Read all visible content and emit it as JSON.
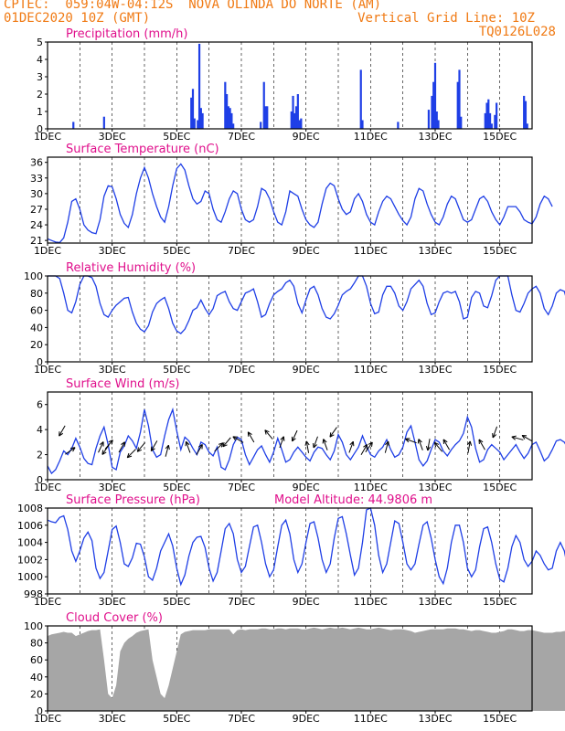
{
  "header": {
    "line1": "CPTEC:  059:04W-04:12S  NOVA OLINDA DO NORTE (AM)",
    "line2_left": "01DEC2020 10Z (GMT)",
    "line2_right": "Vertical Grid Line: 10Z",
    "line3_right": "TQ0126L028"
  },
  "colors": {
    "header": "#f07a14",
    "title": "#e0108c",
    "series": "#1f3fe6",
    "cloud": "#a6a6a6",
    "axis": "#000000"
  },
  "x_tick_labels": [
    "1DEC",
    "3DEC",
    "5DEC",
    "7DEC",
    "9DEC",
    "11DEC",
    "13DEC",
    "15DEC"
  ],
  "x_tick_days": [
    1,
    3,
    5,
    7,
    9,
    11,
    13,
    15
  ],
  "chart_data": [
    {
      "id": "precip",
      "type": "bar",
      "title": "Precipitation (mm/h)",
      "ylabel": "mm/h",
      "ylim": [
        0,
        5
      ],
      "yticks": [
        0,
        1,
        2,
        3,
        4,
        5
      ],
      "x_units": "day of December 2020",
      "points": [
        [
          1.8,
          0.4
        ],
        [
          2.75,
          0.7
        ],
        [
          5.45,
          1.8
        ],
        [
          5.5,
          2.3
        ],
        [
          5.55,
          0.6
        ],
        [
          5.65,
          0.5
        ],
        [
          5.7,
          4.9
        ],
        [
          5.75,
          1.2
        ],
        [
          5.8,
          0.9
        ],
        [
          6.5,
          2.7
        ],
        [
          6.55,
          2.0
        ],
        [
          6.6,
          1.3
        ],
        [
          6.65,
          1.2
        ],
        [
          6.7,
          0.9
        ],
        [
          6.75,
          0.3
        ],
        [
          7.6,
          0.4
        ],
        [
          7.7,
          2.7
        ],
        [
          7.75,
          1.3
        ],
        [
          7.8,
          1.3
        ],
        [
          8.55,
          1.0
        ],
        [
          8.6,
          1.9
        ],
        [
          8.65,
          0.9
        ],
        [
          8.7,
          1.3
        ],
        [
          8.75,
          2.0
        ],
        [
          8.8,
          0.5
        ],
        [
          8.85,
          0.6
        ],
        [
          10.7,
          3.4
        ],
        [
          10.75,
          0.5
        ],
        [
          11.85,
          0.4
        ],
        [
          12.8,
          1.1
        ],
        [
          12.9,
          1.9
        ],
        [
          12.95,
          2.7
        ],
        [
          13.0,
          3.8
        ],
        [
          13.05,
          1.0
        ],
        [
          13.1,
          0.5
        ],
        [
          13.7,
          2.7
        ],
        [
          13.75,
          3.4
        ],
        [
          13.8,
          0.7
        ],
        [
          14.55,
          0.9
        ],
        [
          14.6,
          1.5
        ],
        [
          14.65,
          1.7
        ],
        [
          14.7,
          0.9
        ],
        [
          14.75,
          0.3
        ],
        [
          14.85,
          0.8
        ],
        [
          14.9,
          1.5
        ],
        [
          15.75,
          1.9
        ],
        [
          15.8,
          1.6
        ],
        [
          15.85,
          0.3
        ]
      ]
    },
    {
      "id": "temp",
      "type": "line",
      "title": "Surface Temperature (nC)",
      "ylabel": "nC",
      "ylim": [
        20.5,
        37
      ],
      "yticks": [
        21,
        24,
        27,
        30,
        33,
        36
      ],
      "x_units": "day of December 2020",
      "x_start": 1.0,
      "x_step": 0.125,
      "values": [
        21.3,
        21.0,
        20.7,
        20.6,
        21.5,
        24.5,
        28.5,
        29.0,
        27.0,
        24.0,
        23.0,
        22.5,
        22.3,
        25.0,
        29.5,
        31.5,
        31.3,
        29.0,
        26.0,
        24.3,
        23.5,
        26.0,
        30.0,
        33.0,
        35.0,
        33.0,
        30.0,
        27.5,
        25.5,
        24.5,
        27.5,
        31.5,
        34.8,
        35.7,
        34.5,
        31.5,
        29.0,
        28.0,
        28.5,
        30.5,
        30.0,
        27.0,
        25.0,
        24.5,
        26.5,
        29.0,
        30.5,
        30.0,
        27.0,
        25.0,
        24.5,
        25.0,
        27.5,
        31.0,
        30.5,
        29.0,
        26.5,
        24.5,
        24.0,
        26.5,
        30.5,
        30.0,
        29.5,
        27.0,
        25.0,
        24.0,
        23.5,
        24.5,
        28.0,
        31.0,
        32.0,
        31.5,
        29.0,
        27.0,
        26.0,
        26.5,
        29.0,
        30.0,
        28.5,
        26.0,
        24.5,
        24.0,
        26.5,
        28.5,
        29.5,
        29.0,
        27.5,
        26.0,
        24.8,
        24.0,
        25.5,
        29.0,
        31.0,
        30.5,
        28.0,
        26.0,
        24.5,
        24.0,
        25.5,
        28.0,
        29.5,
        29.0,
        27.0,
        25.0,
        24.5,
        25.0,
        27.0,
        29.0,
        29.5,
        28.5,
        26.5,
        25.0,
        24.0,
        25.5,
        27.5,
        27.5,
        27.5,
        26.5,
        25.0,
        24.5,
        24.2,
        25.5,
        28.0,
        29.5,
        29.0,
        27.5
      ]
    },
    {
      "id": "rh",
      "type": "line",
      "title": "Relative Humidity (%)",
      "ylabel": "%",
      "ylim": [
        0,
        100
      ],
      "yticks": [
        0,
        20,
        40,
        60,
        80,
        100
      ],
      "x_units": "day of December 2020",
      "x_start": 1.0,
      "x_step": 0.125,
      "values": [
        100,
        100,
        100,
        97,
        80,
        60,
        57,
        70,
        90,
        100,
        100,
        98,
        88,
        68,
        55,
        52,
        60,
        66,
        70,
        74,
        75,
        58,
        45,
        38,
        35,
        42,
        58,
        68,
        72,
        75,
        62,
        45,
        36,
        33,
        38,
        48,
        60,
        63,
        72,
        62,
        55,
        62,
        77,
        80,
        82,
        70,
        62,
        60,
        70,
        80,
        82,
        85,
        70,
        52,
        55,
        68,
        78,
        82,
        85,
        92,
        95,
        88,
        68,
        57,
        72,
        85,
        88,
        78,
        62,
        52,
        50,
        56,
        66,
        78,
        82,
        85,
        92,
        100,
        100,
        88,
        68,
        56,
        58,
        78,
        88,
        88,
        80,
        65,
        60,
        70,
        85,
        90,
        95,
        88,
        68,
        55,
        57,
        70,
        80,
        82,
        80,
        82,
        70,
        50,
        52,
        75,
        82,
        80,
        65,
        63,
        77,
        95,
        100,
        100,
        100,
        78,
        60,
        58,
        68,
        80,
        85,
        88,
        80,
        62,
        55,
        65,
        80,
        84,
        82,
        65,
        58
      ]
    },
    {
      "id": "wind",
      "type": "line",
      "title": "Surface Wind (m/s)",
      "ylabel": "m/s",
      "ylim": [
        0,
        7
      ],
      "yticks": [
        0,
        2,
        4,
        6
      ],
      "x_units": "day of December 2020",
      "x_start": 1.0,
      "x_step": 0.125,
      "values": [
        1.1,
        0.5,
        0.8,
        1.5,
        2.3,
        2.0,
        2.5,
        3.3,
        2.6,
        1.7,
        1.3,
        1.2,
        2.5,
        3.5,
        4.2,
        2.8,
        1.0,
        0.8,
        2.2,
        2.7,
        3.5,
        3.1,
        2.5,
        3.8,
        5.6,
        4.3,
        2.4,
        1.8,
        2.0,
        3.5,
        4.8,
        5.6,
        3.9,
        2.4,
        3.4,
        3.1,
        2.5,
        2.0,
        3.0,
        2.8,
        2.2,
        1.9,
        2.6,
        1.0,
        0.8,
        1.6,
        2.8,
        3.4,
        3.2,
        2.0,
        1.2,
        1.8,
        2.4,
        2.7,
        2.0,
        1.4,
        2.2,
        3.3,
        2.4,
        1.4,
        1.6,
        2.2,
        2.6,
        2.2,
        1.8,
        1.5,
        2.2,
        2.6,
        2.5,
        2.0,
        1.6,
        2.3,
        3.6,
        3.0,
        2.0,
        1.6,
        2.1,
        2.6,
        3.5,
        2.7,
        2.0,
        1.8,
        2.3,
        2.6,
        3.2,
        2.4,
        1.8,
        2.0,
        2.6,
        3.8,
        4.3,
        3.0,
        1.6,
        1.1,
        1.5,
        2.4,
        3.2,
        3.0,
        2.3,
        1.9,
        2.4,
        2.8,
        3.1,
        3.7,
        5.0,
        4.2,
        2.5,
        1.4,
        1.6,
        2.4,
        2.8,
        2.5,
        2.2,
        1.6,
        2.0,
        2.4,
        2.8,
        2.2,
        1.7,
        2.1,
        2.8,
        3.0,
        2.3,
        1.5,
        1.8,
        2.4,
        3.1,
        3.2,
        3.0,
        2.4,
        2.2
      ],
      "arrows": [
        [
          1.45,
          3.9,
          210
        ],
        [
          1.7,
          2.3,
          55
        ],
        [
          2.65,
          2.6,
          25
        ],
        [
          2.8,
          2.4,
          215
        ],
        [
          2.9,
          2.8,
          40
        ],
        [
          3.3,
          2.6,
          30
        ],
        [
          3.6,
          2.1,
          225
        ],
        [
          3.9,
          2.6,
          220
        ],
        [
          4.3,
          2.7,
          210
        ],
        [
          4.7,
          2.3,
          15
        ],
        [
          5.35,
          2.6,
          340
        ],
        [
          5.7,
          2.4,
          30
        ],
        [
          6.3,
          2.6,
          45
        ],
        [
          6.55,
          3.0,
          220
        ],
        [
          6.9,
          3.2,
          300
        ],
        [
          7.3,
          3.4,
          330
        ],
        [
          7.85,
          3.6,
          320
        ],
        [
          8.25,
          3.0,
          20
        ],
        [
          8.65,
          3.5,
          205
        ],
        [
          9.05,
          2.6,
          350
        ],
        [
          9.3,
          3.0,
          200
        ],
        [
          9.6,
          2.8,
          340
        ],
        [
          9.85,
          3.8,
          215
        ],
        [
          10.4,
          2.6,
          20
        ],
        [
          10.8,
          2.4,
          30
        ],
        [
          10.95,
          2.6,
          35
        ],
        [
          11.5,
          2.6,
          15
        ],
        [
          12.25,
          3.1,
          290
        ],
        [
          12.55,
          2.8,
          340
        ],
        [
          12.8,
          2.8,
          190
        ],
        [
          13.1,
          2.6,
          320
        ],
        [
          13.35,
          2.8,
          330
        ],
        [
          14.05,
          2.6,
          10
        ],
        [
          14.45,
          2.8,
          330
        ],
        [
          14.85,
          3.8,
          200
        ],
        [
          15.55,
          3.3,
          285
        ],
        [
          15.85,
          3.3,
          300
        ]
      ]
    },
    {
      "id": "pressure",
      "type": "line",
      "title": "Surface Pressure (hPa)",
      "annotation": "Model Altitude: 44.9806 m",
      "ylabel": "hPa",
      "ylim": [
        998,
        1008
      ],
      "yticks": [
        998,
        1000,
        1002,
        1004,
        1006,
        1008
      ],
      "x_units": "day of December 2020",
      "x_start": 1.0,
      "x_step": 0.125,
      "values": [
        1006.6,
        1006.4,
        1006.3,
        1006.9,
        1007.1,
        1005.5,
        1003.0,
        1001.8,
        1003.0,
        1004.5,
        1005.2,
        1004.2,
        1001.0,
        999.8,
        1000.5,
        1003.0,
        1005.5,
        1005.9,
        1004.0,
        1001.5,
        1001.2,
        1002.2,
        1003.9,
        1003.8,
        1002.3,
        1000.0,
        999.6,
        1001.0,
        1003.0,
        1004.0,
        1005.0,
        1003.6,
        1001.0,
        999.1,
        1000.2,
        1002.4,
        1004.0,
        1004.6,
        1004.7,
        1003.4,
        1001.0,
        999.5,
        1000.5,
        1003.0,
        1005.6,
        1006.2,
        1005.0,
        1002.0,
        1000.5,
        1001.2,
        1003.5,
        1005.8,
        1006.0,
        1004.0,
        1001.5,
        1000.0,
        1000.8,
        1003.5,
        1006.0,
        1006.6,
        1005.0,
        1002.0,
        1000.5,
        1001.5,
        1004.0,
        1006.2,
        1006.4,
        1004.5,
        1002.0,
        1000.5,
        1001.5,
        1004.5,
        1006.8,
        1007.0,
        1005.0,
        1002.5,
        1000.2,
        1001.0,
        1004.0,
        1007.8,
        1008.0,
        1006.0,
        1002.5,
        1000.5,
        1001.5,
        1004.0,
        1006.5,
        1006.2,
        1004.0,
        1001.5,
        1000.8,
        1001.5,
        1003.8,
        1006.0,
        1006.4,
        1004.5,
        1002.0,
        1000.0,
        999.2,
        1001.0,
        1004.0,
        1006.0,
        1006.0,
        1004.0,
        1001.0,
        1000.0,
        1000.8,
        1003.5,
        1005.6,
        1005.8,
        1004.0,
        1001.5,
        999.7,
        999.4,
        1001.0,
        1003.5,
        1004.8,
        1004.0,
        1002.0,
        1001.2,
        1001.8,
        1003.0,
        1002.5,
        1001.5,
        1000.8,
        1001.0,
        1003.0,
        1004.0,
        1003.0,
        1000.6,
        999.7,
        1002.0
      ]
    },
    {
      "id": "cloud",
      "type": "area",
      "title": "Cloud Cover (%)",
      "ylabel": "%",
      "ylim": [
        0,
        100
      ],
      "yticks": [
        0,
        20,
        40,
        60,
        80,
        100
      ],
      "x_units": "day of December 2020",
      "x_start": 1.0,
      "x_step": 0.125,
      "values": [
        88,
        90,
        91,
        92,
        93,
        92,
        92,
        88,
        90,
        92,
        94,
        95,
        95,
        96,
        60,
        20,
        15,
        30,
        70,
        80,
        85,
        88,
        92,
        94,
        95,
        96,
        60,
        40,
        20,
        15,
        30,
        50,
        70,
        90,
        93,
        94,
        95,
        95,
        95,
        95,
        96,
        96,
        96,
        96,
        96,
        96,
        90,
        95,
        96,
        95,
        96,
        96,
        96,
        97,
        97,
        96,
        96,
        97,
        97,
        96,
        97,
        97,
        97,
        96,
        96,
        97,
        98,
        97,
        96,
        97,
        98,
        97,
        97,
        98,
        97,
        96,
        97,
        98,
        97,
        96,
        96,
        97,
        98,
        97,
        96,
        95,
        96,
        96,
        96,
        95,
        94,
        92,
        93,
        94,
        95,
        96,
        96,
        96,
        96,
        97,
        97,
        97,
        96,
        96,
        95,
        94,
        95,
        95,
        94,
        93,
        92,
        92,
        93,
        94,
        96,
        96,
        95,
        94,
        94,
        95,
        95,
        94,
        93,
        92,
        92,
        92,
        93,
        93,
        94,
        94,
        92
      ]
    }
  ]
}
